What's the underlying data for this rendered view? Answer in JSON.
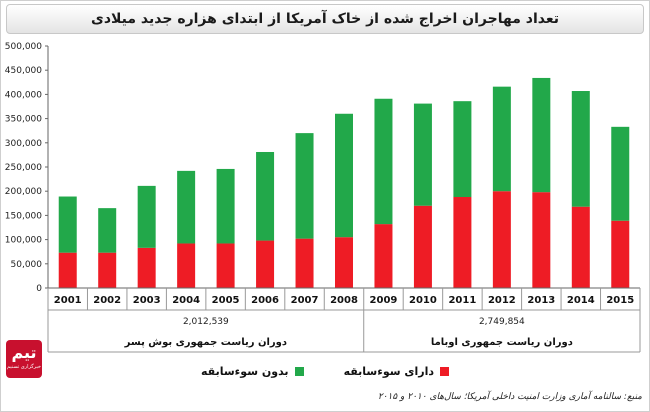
{
  "chart_data": {
    "type": "bar",
    "stacked": true,
    "title": "تعداد مهاجران اخراج شده از خاک آمریکا از ابتدای هزاره جدید میلادی",
    "categories": [
      "2001",
      "2002",
      "2003",
      "2004",
      "2005",
      "2006",
      "2007",
      "2008",
      "2009",
      "2010",
      "2011",
      "2012",
      "2013",
      "2014",
      "2015"
    ],
    "series": [
      {
        "name": "دارای سوءسابقه",
        "color": "#ee1c25",
        "values": [
          73000,
          73000,
          83000,
          92000,
          92000,
          98000,
          102000,
          105000,
          132000,
          170000,
          188000,
          200000,
          198000,
          168000,
          139000
        ]
      },
      {
        "name": "بدون سوءسابقه",
        "color": "#22a84a",
        "values": [
          116000,
          92000,
          128000,
          150000,
          154000,
          183000,
          218000,
          255000,
          259000,
          211000,
          198000,
          216000,
          236000,
          239000,
          194000
        ]
      }
    ],
    "ylim": [
      0,
      500000
    ],
    "yticks": [
      "0",
      "50,000",
      "100,000",
      "150,000",
      "200,000",
      "250,000",
      "300,000",
      "350,000",
      "400,000",
      "450,000",
      "500,000"
    ],
    "grid": false,
    "legend_position": "bottom",
    "periods": [
      {
        "label": "دوران ریاست جمهوری بوش پسر",
        "total": "2,012,539",
        "from_index": 0,
        "to_index": 7
      },
      {
        "label": "دوران ریاست جمهوری اوباما",
        "total": "2,749,854",
        "from_index": 8,
        "to_index": 14
      }
    ]
  },
  "legend": {
    "criminal_label": "دارای سوءسابقه",
    "noncriminal_label": "بدون سوءسابقه",
    "criminal_color": "#ee1c25",
    "noncriminal_color": "#22a84a"
  },
  "source_note": "منبع: سالنامه آماری وزارت امنیت داخلی آمریکا؛ سال‌های ۲۰۱۰ و ۲۰۱۵",
  "logo": {
    "mark": "تیم",
    "subtitle": "خبرگزاری تسنیم"
  }
}
